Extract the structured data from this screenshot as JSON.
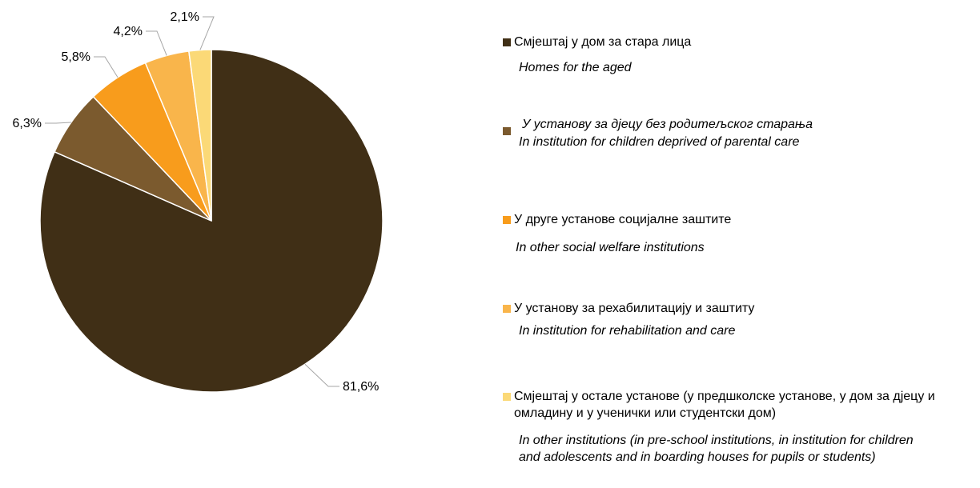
{
  "chart_data": {
    "type": "pie",
    "values": [
      81.6,
      6.3,
      5.8,
      4.2,
      2.1
    ],
    "data_labels": [
      "81,6%",
      "6,3%",
      "5,8%",
      "4,2%",
      "2,1%"
    ],
    "colors": [
      "#402f16",
      "#7b5a2e",
      "#f89c1c",
      "#f9b54b",
      "#fbd977"
    ],
    "legend": [
      {
        "label": "Смјештај у дом за стара лица",
        "label_en": "Homes for the aged"
      },
      {
        "label": "У установу за дјецу без родитељског  старања",
        "label_en": "In institution for children deprived of parental care"
      },
      {
        "label": "У друге установе социјалне заштите",
        "label_en": "In other social welfare institutions"
      },
      {
        "label": "У установу за рехабилитацију и заштиту",
        "label_en": "In institution for rehabilitation and care"
      },
      {
        "label": "Смјештај у остале установе (у предшколске установе, у дом за дјецу и омладину и у ученички или студентски дом)",
        "label_en": "In other institutions (in pre-school institutions, in institution for children and adolescents and in boarding houses for pupils or students)"
      }
    ],
    "legend_position": "right"
  }
}
